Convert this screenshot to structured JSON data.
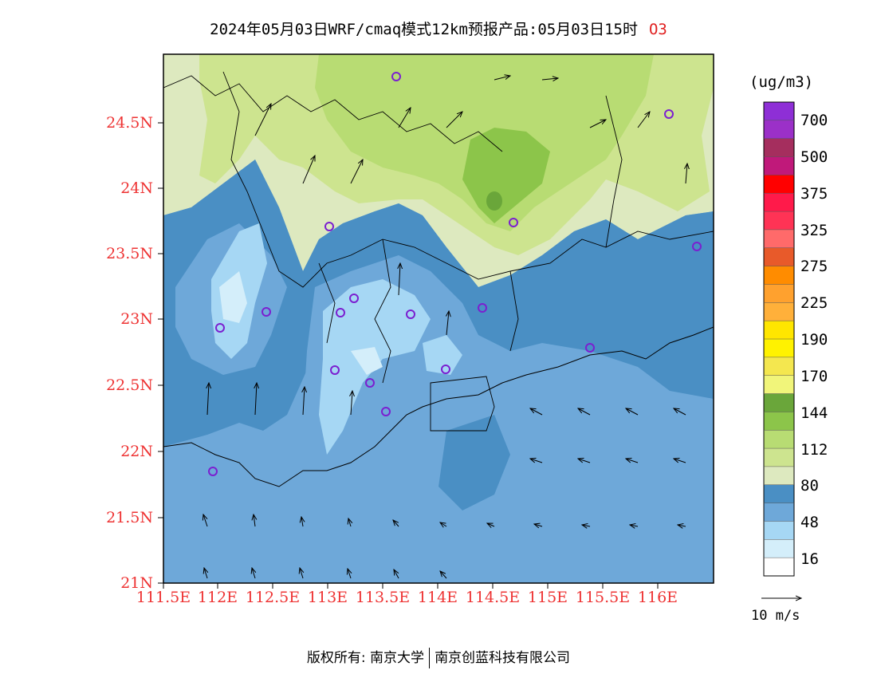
{
  "title": {
    "main": "2024年05月03日WRF/cmaq模式12km预报产品:05月03日15时",
    "pollutant": "O3"
  },
  "axes": {
    "lat_labels": [
      "24.5N",
      "24N",
      "23.5N",
      "23N",
      "22.5N",
      "22N",
      "21.5N",
      "21N"
    ],
    "lon_labels": [
      "111.5E",
      "112E",
      "112.5E",
      "113E",
      "113.5E",
      "114E",
      "114.5E",
      "115E",
      "115.5E",
      "116E"
    ],
    "label_color": "#ee3333"
  },
  "colorbar": {
    "unit": "(ug/m3)",
    "levels": [
      "700",
      "500",
      "375",
      "325",
      "275",
      "225",
      "190",
      "170",
      "144",
      "112",
      "80",
      "48",
      "16"
    ],
    "colors": [
      "#8e2fd6",
      "#9b30c8",
      "#a52e5e",
      "#c0197a",
      "#ff0000",
      "#ff1a4a",
      "#ff3355",
      "#ff6a6a",
      "#e85a2a",
      "#ff8c00",
      "#ffa12e",
      "#ffb03a",
      "#ffe600",
      "#fff200",
      "#f4e74f",
      "#f1f57a",
      "#6aa63a",
      "#8cc54a",
      "#b8dc73",
      "#cde48f",
      "#dde9bf",
      "#4a8fc4",
      "#6ea8d9",
      "#a6d7f4",
      "#d4eefa",
      "#ffffff"
    ]
  },
  "wind_reference": {
    "label": "10 m/s"
  },
  "stations_color": "#7b1fd0",
  "copyright": {
    "left": "版权所有: 南京大学",
    "right": "南京创蓝科技有限公司"
  }
}
